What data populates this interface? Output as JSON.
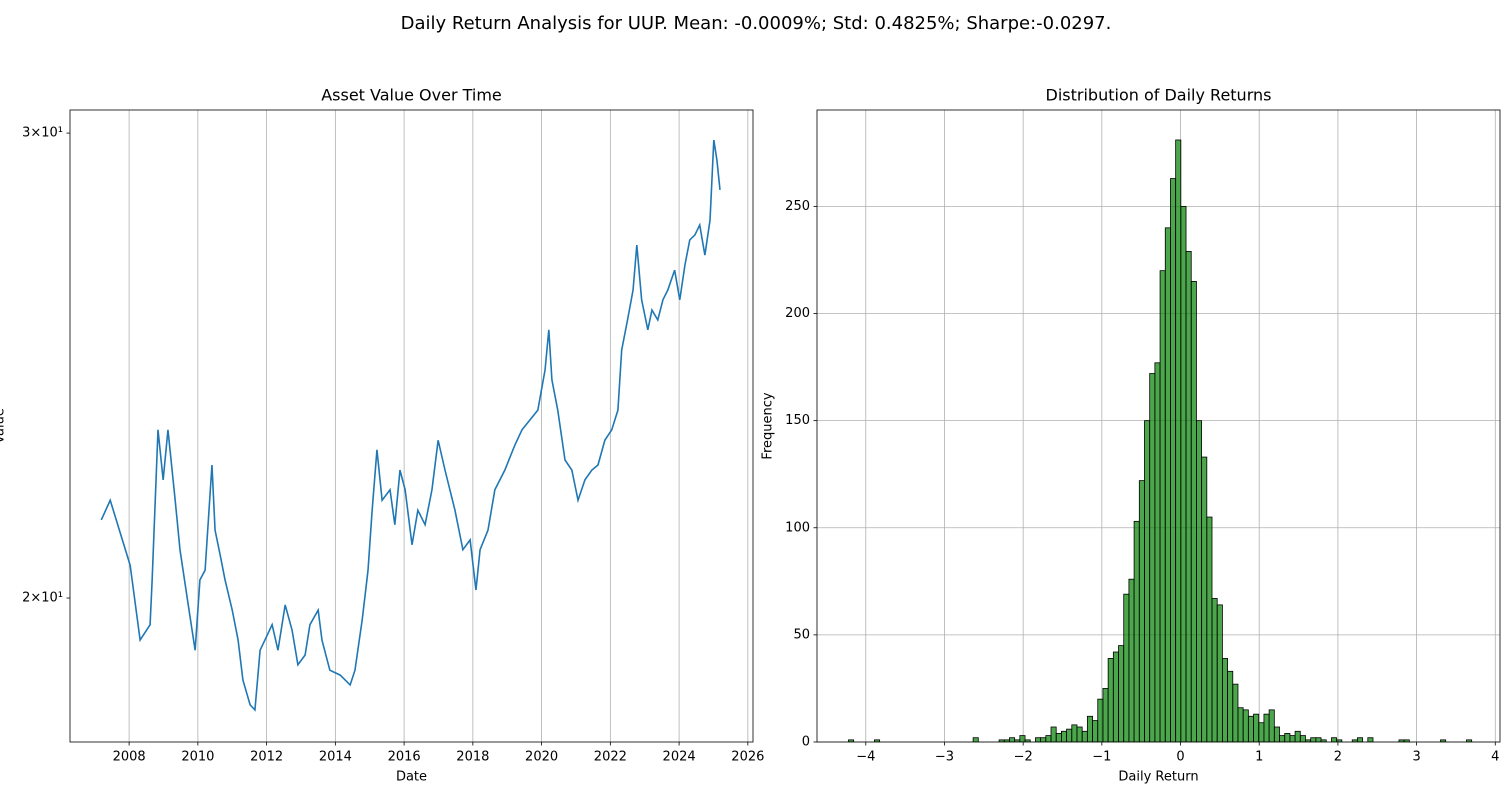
{
  "title": "Daily Return Analysis for UUP. Mean: -0.0009%; Std: 0.4825%; Sharpe:-0.0297.",
  "chart_data": [
    {
      "type": "line",
      "title": "Asset Value Over Time",
      "xlabel": "Date",
      "ylabel": "Value",
      "color": "#1f77b4",
      "yscale": "log",
      "grid": "x",
      "xlim": [
        2006.28,
        2026.15
      ],
      "ylim": [
        17.64,
        30.61
      ],
      "xticks": [
        2008,
        2010,
        2012,
        2014,
        2016,
        2018,
        2020,
        2022,
        2024,
        2026
      ],
      "yticks": [
        {
          "value": 20,
          "label": "2×10¹"
        },
        {
          "value": 30,
          "label": "3×10¹"
        }
      ],
      "x": [
        2007.19,
        2007.45,
        2008.03,
        2008.32,
        2008.61,
        2008.67,
        2008.84,
        2008.99,
        2009.13,
        2009.34,
        2009.48,
        2009.72,
        2009.92,
        2010.06,
        2010.21,
        2010.41,
        2010.5,
        2010.65,
        2010.79,
        2011.0,
        2011.17,
        2011.31,
        2011.52,
        2011.66,
        2011.81,
        2011.95,
        2012.16,
        2012.33,
        2012.54,
        2012.74,
        2012.91,
        2013.12,
        2013.26,
        2013.5,
        2013.61,
        2013.84,
        2014.14,
        2014.43,
        2014.57,
        2014.78,
        2014.95,
        2015.07,
        2015.21,
        2015.36,
        2015.59,
        2015.73,
        2015.88,
        2016.03,
        2016.23,
        2016.4,
        2016.61,
        2016.81,
        2016.99,
        2017.19,
        2017.48,
        2017.71,
        2017.92,
        2018.09,
        2018.21,
        2018.44,
        2018.64,
        2018.93,
        2019.22,
        2019.43,
        2019.66,
        2019.89,
        2020.1,
        2020.21,
        2020.3,
        2020.47,
        2020.68,
        2020.88,
        2021.06,
        2021.26,
        2021.46,
        2021.64,
        2021.84,
        2022.04,
        2022.22,
        2022.33,
        2022.5,
        2022.66,
        2022.77,
        2022.91,
        2023.09,
        2023.21,
        2023.38,
        2023.53,
        2023.67,
        2023.87,
        2024.02,
        2024.17,
        2024.31,
        2024.46,
        2024.6,
        2024.75,
        2024.9,
        2025.01,
        2025.1,
        2025.19
      ],
      "values": [
        21.41,
        21.78,
        20.58,
        19.28,
        19.54,
        20.32,
        23.16,
        22.17,
        23.16,
        21.78,
        20.86,
        19.88,
        19.11,
        20.32,
        20.49,
        22.46,
        21.22,
        20.76,
        20.32,
        19.79,
        19.28,
        18.62,
        18.22,
        18.14,
        19.11,
        19.28,
        19.54,
        19.11,
        19.88,
        19.45,
        18.87,
        19.03,
        19.54,
        19.79,
        19.28,
        18.78,
        18.7,
        18.54,
        18.78,
        19.62,
        20.49,
        21.59,
        22.76,
        21.78,
        21.98,
        21.32,
        22.36,
        21.98,
        20.95,
        21.59,
        21.32,
        21.98,
        22.95,
        22.36,
        21.59,
        20.86,
        21.04,
        20.14,
        20.86,
        21.22,
        21.98,
        22.36,
        22.85,
        23.16,
        23.36,
        23.56,
        24.4,
        25.27,
        24.19,
        23.56,
        22.56,
        22.36,
        21.78,
        22.17,
        22.36,
        22.46,
        22.95,
        23.16,
        23.56,
        24.83,
        25.49,
        26.16,
        27.21,
        25.94,
        25.27,
        25.71,
        25.49,
        25.94,
        26.16,
        26.62,
        25.94,
        26.74,
        27.33,
        27.45,
        27.69,
        26.97,
        27.81,
        29.82,
        29.3,
        28.55
      ]
    },
    {
      "type": "histogram",
      "title": "Distribution of Daily Returns",
      "xlabel": "Daily Return",
      "ylabel": "Frequency",
      "color": "green",
      "edgecolor": "black",
      "alpha": 0.7,
      "grid": "both",
      "xlim": [
        -4.62,
        4.06
      ],
      "ylim": [
        0,
        295
      ],
      "xticks": [
        {
          "value": -4,
          "label": "−4"
        },
        {
          "value": -3,
          "label": "−3"
        },
        {
          "value": -2,
          "label": "−2"
        },
        {
          "value": -1,
          "label": "−1"
        },
        0,
        1,
        2,
        3,
        4
      ],
      "yticks": [
        0,
        50,
        100,
        150,
        200,
        250
      ],
      "bins": [
        -4.22,
        -4.154,
        -4.088,
        -4.022,
        -3.956,
        -3.89,
        -3.824,
        -3.758,
        -3.692,
        -3.626,
        -3.56,
        -3.494,
        -3.428,
        -3.362,
        -3.296,
        -3.23,
        -3.164,
        -3.098,
        -3.032,
        -2.966,
        -2.9,
        -2.834,
        -2.768,
        -2.702,
        -2.636,
        -2.57,
        -2.504,
        -2.438,
        -2.372,
        -2.306,
        -2.24,
        -2.174,
        -2.108,
        -2.042,
        -1.976,
        -1.91,
        -1.844,
        -1.778,
        -1.712,
        -1.646,
        -1.58,
        -1.514,
        -1.448,
        -1.382,
        -1.316,
        -1.25,
        -1.184,
        -1.118,
        -1.052,
        -0.986,
        -0.92,
        -0.854,
        -0.788,
        -0.722,
        -0.656,
        -0.59,
        -0.524,
        -0.458,
        -0.392,
        -0.326,
        -0.26,
        -0.194,
        -0.128,
        -0.062,
        0.004,
        0.07,
        0.136,
        0.202,
        0.268,
        0.334,
        0.4,
        0.466,
        0.532,
        0.598,
        0.664,
        0.73,
        0.796,
        0.862,
        0.928,
        0.994,
        1.06,
        1.126,
        1.192,
        1.258,
        1.324,
        1.39,
        1.456,
        1.522,
        1.588,
        1.654,
        1.72,
        1.786,
        1.852,
        1.918,
        1.984,
        2.05,
        2.116,
        2.182,
        2.248,
        2.314,
        2.38,
        2.446,
        2.512,
        2.578,
        2.644,
        2.71,
        2.776,
        2.842,
        2.908,
        2.974,
        3.04,
        3.106,
        3.172,
        3.238,
        3.304,
        3.37,
        3.436,
        3.502,
        3.568,
        3.634,
        3.7
      ],
      "values": [
        1,
        0,
        0,
        0,
        0,
        1,
        0,
        0,
        0,
        0,
        0,
        0,
        0,
        0,
        0,
        0,
        0,
        0,
        0,
        0,
        0,
        0,
        0,
        0,
        2,
        0,
        0,
        0,
        0,
        1,
        1,
        2,
        1,
        3,
        1,
        0,
        2,
        2,
        3,
        7,
        4,
        5,
        6,
        8,
        7,
        5,
        12,
        10,
        20,
        25,
        39,
        42,
        45,
        69,
        76,
        103,
        122,
        150,
        172,
        177,
        220,
        240,
        263,
        281,
        250,
        229,
        215,
        150,
        133,
        105,
        67,
        64,
        39,
        33,
        27,
        16,
        15,
        12,
        13,
        9,
        13,
        15,
        7,
        3,
        4,
        3,
        5,
        3,
        1,
        2,
        2,
        1,
        0,
        2,
        1,
        0,
        0,
        1,
        2,
        0,
        2,
        0,
        0,
        0,
        0,
        0,
        1,
        1,
        0,
        0,
        0,
        0,
        0,
        0,
        1,
        0,
        0,
        0,
        0,
        1
      ]
    }
  ]
}
